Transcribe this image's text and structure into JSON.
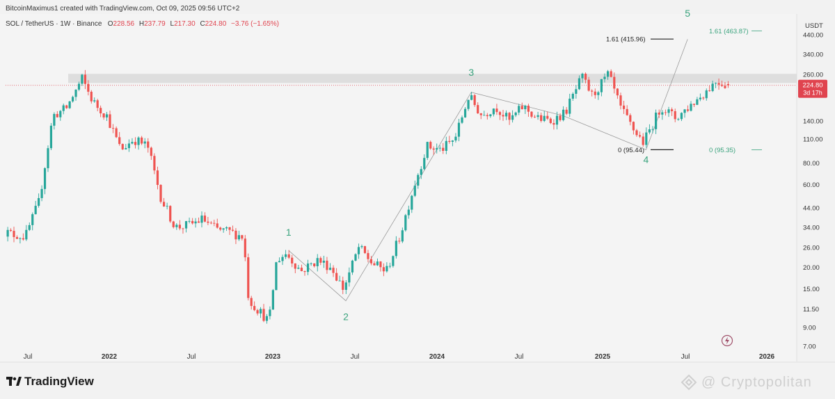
{
  "header": {
    "attribution": "BitcoinMaximus1 created with TradingView.com, Oct 09, 2025 09:56 UTC+2"
  },
  "ticker": {
    "symbol_line": "SOL / TetherUS · 1W · Binance",
    "open_key": "O",
    "open": "228.56",
    "high_key": "H",
    "high": "237.79",
    "low_key": "L",
    "low": "217.30",
    "close_key": "C",
    "close": "224.80",
    "change": "−3.76 (−1.65%)"
  },
  "price_axis": {
    "currency": "USDT",
    "current_price": "224.80",
    "countdown": "3d 17h"
  },
  "logo": {
    "text": "TradingView"
  },
  "watermark": {
    "text": "@ Cryptopolitan"
  },
  "colors": {
    "up": "#26a69a",
    "down": "#ef5350",
    "wave_label": "#3aa37d",
    "fib_green": "#3aa37d",
    "fib_black": "#222222",
    "resistance_zone": "#d9d9d9",
    "price_tag": "#e0444f"
  },
  "chart_data": {
    "type": "candlestick",
    "scale": "log",
    "ylim": [
      6.5,
      520
    ],
    "y_ticks": [
      "440.00",
      "340.00",
      "260.00",
      "140.00",
      "110.00",
      "80.00",
      "60.00",
      "44.00",
      "34.00",
      "26.00",
      "20.00",
      "15.00",
      "11.50",
      "9.00",
      "7.00"
    ],
    "x_ticks": [
      "Jul",
      "2022",
      "Jul",
      "2023",
      "Jul",
      "2024",
      "Jul",
      "2025",
      "Jul",
      "2026"
    ],
    "resistance_zone": {
      "low": 232,
      "high": 262
    },
    "fib_levels": [
      {
        "label": "1.61 (415.96)",
        "value": 415.96,
        "set": "black"
      },
      {
        "label": "0 (95.44)",
        "value": 95.44,
        "set": "black"
      },
      {
        "label": "1.61 (463.87)",
        "value": 463.87,
        "set": "green"
      },
      {
        "label": "0 (95.35)",
        "value": 95.35,
        "set": "green"
      }
    ],
    "wave_labels": [
      {
        "text": "1",
        "date": "2023-02-05",
        "price": 30.5
      },
      {
        "text": "2",
        "date": "2023-06-11",
        "price": 9.9
      },
      {
        "text": "3",
        "date": "2024-03-17",
        "price": 255
      },
      {
        "text": "4",
        "date": "2025-04-06",
        "price": 80
      },
      {
        "text": "5",
        "date": "2025-07-06",
        "price": 560
      }
    ],
    "wave_path": [
      {
        "date": "2023-02-05",
        "price": 25.0
      },
      {
        "date": "2023-06-11",
        "price": 12.8
      },
      {
        "date": "2024-03-17",
        "price": 205
      },
      {
        "date": "2024-10-06",
        "price": 150
      },
      {
        "date": "2025-04-06",
        "price": 95.44
      },
      {
        "date": "2025-07-06",
        "price": 415
      }
    ],
    "anchor_dates": [
      "2021-07-01",
      "2022-01-01",
      "2022-07-01",
      "2023-01-01",
      "2023-07-01",
      "2024-01-01",
      "2024-07-01",
      "2025-01-01",
      "2025-07-01",
      "2026-01-01"
    ],
    "price_anchors": [
      [
        "2021-05-01",
        33
      ],
      [
        "2021-06-01",
        31
      ],
      [
        "2021-07-01",
        30
      ],
      [
        "2021-08-01",
        48
      ],
      [
        "2021-09-01",
        150
      ],
      [
        "2021-10-01",
        165
      ],
      [
        "2021-11-06",
        245
      ],
      [
        "2021-12-01",
        180
      ],
      [
        "2022-01-01",
        150
      ],
      [
        "2022-02-01",
        95
      ],
      [
        "2022-03-01",
        110
      ],
      [
        "2022-04-01",
        100
      ],
      [
        "2022-05-01",
        50
      ],
      [
        "2022-06-01",
        34
      ],
      [
        "2022-07-01",
        35
      ],
      [
        "2022-08-01",
        38
      ],
      [
        "2022-09-01",
        33
      ],
      [
        "2022-10-01",
        32
      ],
      [
        "2022-11-01",
        30
      ],
      [
        "2022-11-13",
        13
      ],
      [
        "2022-12-29",
        9.7
      ],
      [
        "2023-01-15",
        22
      ],
      [
        "2023-02-05",
        24
      ],
      [
        "2023-03-10",
        19
      ],
      [
        "2023-04-15",
        22
      ],
      [
        "2023-05-15",
        20
      ],
      [
        "2023-06-11",
        15
      ],
      [
        "2023-07-15",
        26
      ],
      [
        "2023-08-15",
        21
      ],
      [
        "2023-09-15",
        19
      ],
      [
        "2023-10-15",
        30
      ],
      [
        "2023-11-15",
        58
      ],
      [
        "2023-12-15",
        100
      ],
      [
        "2024-01-15",
        95
      ],
      [
        "2024-02-15",
        110
      ],
      [
        "2024-03-17",
        195
      ],
      [
        "2024-04-15",
        150
      ],
      [
        "2024-05-15",
        170
      ],
      [
        "2024-06-15",
        140
      ],
      [
        "2024-07-15",
        170
      ],
      [
        "2024-08-15",
        145
      ],
      [
        "2024-09-15",
        140
      ],
      [
        "2024-10-15",
        155
      ],
      [
        "2024-11-22",
        250
      ],
      [
        "2024-12-15",
        195
      ],
      [
        "2025-01-19",
        260
      ],
      [
        "2025-02-15",
        165
      ],
      [
        "2025-03-15",
        125
      ],
      [
        "2025-04-06",
        105
      ],
      [
        "2025-05-15",
        170
      ],
      [
        "2025-06-15",
        145
      ],
      [
        "2025-07-15",
        170
      ],
      [
        "2025-08-15",
        200
      ],
      [
        "2025-09-15",
        240
      ],
      [
        "2025-10-09",
        224.8
      ]
    ],
    "last_candle": {
      "open": 228.56,
      "high": 237.79,
      "low": 217.3,
      "close": 224.8
    }
  }
}
